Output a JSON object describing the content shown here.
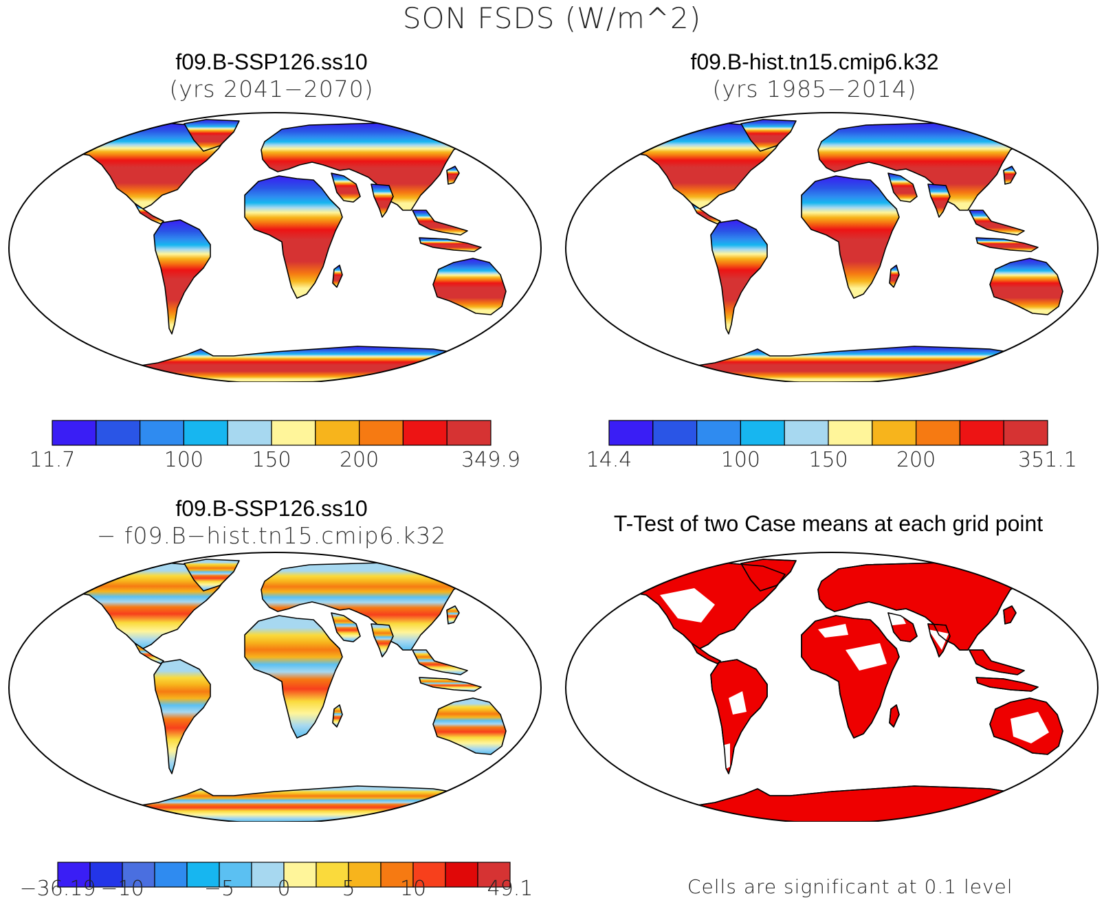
{
  "figure": {
    "title": "SON FSDS (W/m^2)"
  },
  "panels": [
    {
      "id": "case",
      "title_line1": "f09.B-SSP126.ss10",
      "title_line2": "(yrs 2041−2070)",
      "palette": [
        "#3a1ef5",
        "#2a55e6",
        "#2f8bf0",
        "#17b6f0",
        "#a7d8f0",
        "#fff59a",
        "#f7b41c",
        "#f67a12",
        "#ed1414",
        "#d63333"
      ],
      "colorbar_labels": [
        "11.7",
        "100",
        "150",
        "200",
        "349.9"
      ],
      "colorbar_label_bins": [
        0,
        3,
        5,
        7,
        10
      ]
    },
    {
      "id": "reference",
      "title_line1": "f09.B-hist.tn15.cmip6.k32",
      "title_line2": "(yrs 1985−2014)",
      "palette": [
        "#3a1ef5",
        "#2a55e6",
        "#2f8bf0",
        "#17b6f0",
        "#a7d8f0",
        "#fff59a",
        "#f7b41c",
        "#f67a12",
        "#ed1414",
        "#d63333"
      ],
      "colorbar_labels": [
        "14.4",
        "100",
        "150",
        "200",
        "351.1"
      ],
      "colorbar_label_bins": [
        0,
        3,
        5,
        7,
        10
      ]
    },
    {
      "id": "difference",
      "title_line1": "f09.B-SSP126.ss10",
      "title_line2": "− f09.B−hist.tn15.cmip6.k32",
      "palette": [
        "#3a1ef5",
        "#2335e8",
        "#4a6fe0",
        "#2f8bf0",
        "#17b6f0",
        "#5bc0f2",
        "#a7d8f0",
        "#fff59a",
        "#fada3c",
        "#f7b41c",
        "#f67a12",
        "#f7401c",
        "#e00808",
        "#d63333"
      ],
      "colorbar_labels": [
        "−36.19",
        "−10",
        "−5",
        "0",
        "5",
        "10",
        "49.1"
      ],
      "colorbar_label_bins": [
        0,
        2,
        5,
        7,
        9,
        11,
        14
      ]
    },
    {
      "id": "ttest",
      "title_line1": "T-Test of two Case means at each grid point",
      "note": "Cells are significant at 0.1 level",
      "significant_color": "#ee0000"
    }
  ]
}
